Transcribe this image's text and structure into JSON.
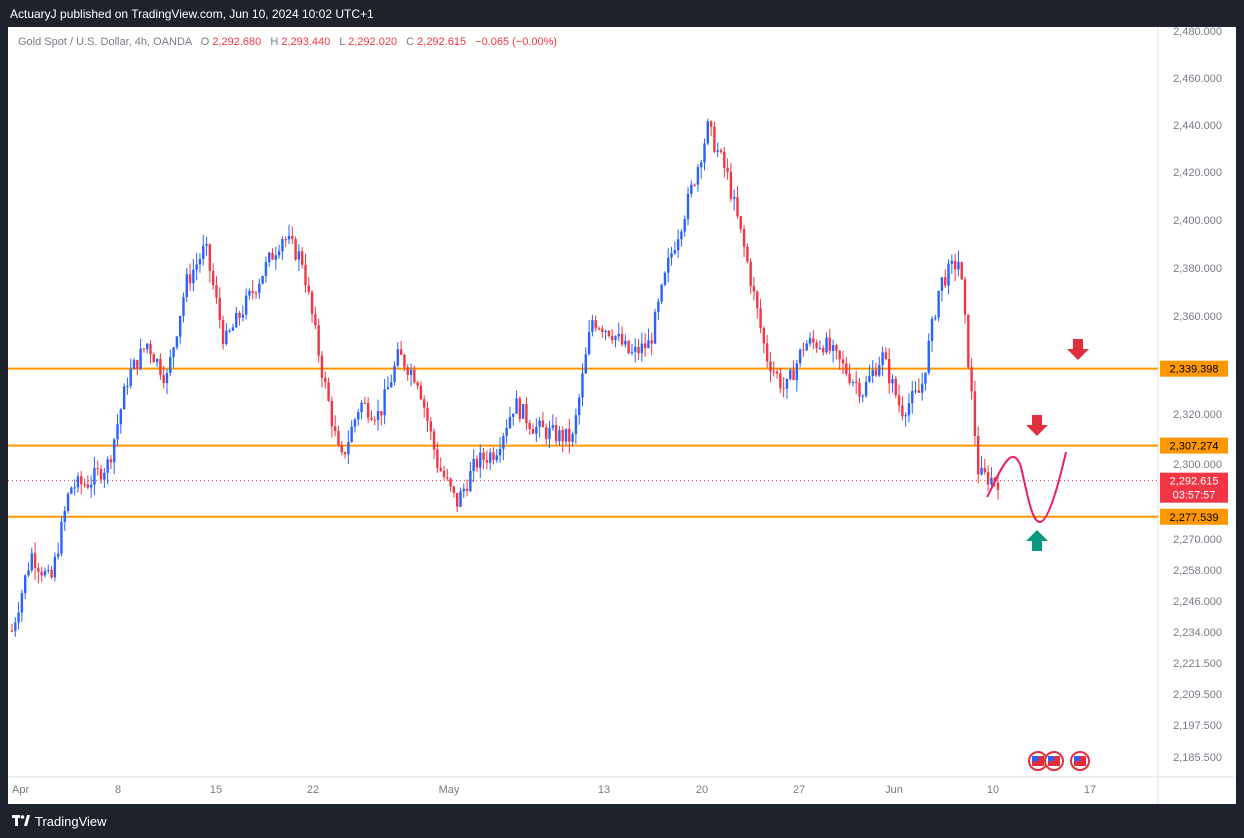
{
  "header": {
    "published": "ActuaryJ published on TradingView.com, Jun 10, 2024 10:02 UTC+1"
  },
  "footer": {
    "brand": "TradingView",
    "logo_icon": "tradingview-logo-icon"
  },
  "legend": {
    "symbol": "Gold Spot / U.S. Dollar, 4h, OANDA",
    "o_label": "O",
    "o_value": "2,292.680",
    "h_label": "H",
    "h_value": "2,293.440",
    "l_label": "L",
    "l_value": "2,292.020",
    "c_label": "C",
    "c_value": "2,292.615",
    "change": "−0.065 (−0.00%)"
  },
  "colors": {
    "up": "#2962ff",
    "down": "#f23645",
    "level": "#ff9800",
    "projection": "#e91e63",
    "arrow_down": "#e03040",
    "arrow_up": "#089981",
    "background": "#1e222d",
    "chart_bg": "#ffffff"
  },
  "price_axis": {
    "ticks": [
      "2,480.000",
      "2,460.000",
      "2,440.000",
      "2,420.000",
      "2,400.000",
      "2,380.000",
      "2,360.000",
      "2,320.000",
      "2,300.000",
      "2,270.000",
      "2,258.000",
      "2,246.000",
      "2,234.000",
      "2,221.500",
      "2,209.500",
      "2,197.500",
      "2,185.500"
    ]
  },
  "time_axis": {
    "labels": [
      "Apr",
      "8",
      "15",
      "22",
      "May",
      "13",
      "20",
      "27",
      "Jun",
      "10",
      "17"
    ]
  },
  "chart_data": {
    "type": "candlestick",
    "title": "Gold Spot / U.S. Dollar, 4h, OANDA",
    "x_labels": [
      "Apr",
      "8",
      "15",
      "22",
      "May",
      "13",
      "20",
      "27",
      "Jun",
      "10",
      "17"
    ],
    "levels": [
      {
        "label": "2,339.398",
        "value": 2339.398,
        "color": "#ff9800"
      },
      {
        "label": "2,307.274",
        "value": 2307.274,
        "color": "#ff9800"
      },
      {
        "label": "2,277.539",
        "value": 2277.539,
        "color": "#ff9800"
      }
    ],
    "current_price": {
      "label": "2,292.615",
      "countdown": "03:57:57",
      "value": 2292.615
    },
    "series_anchors": [
      {
        "x": "Apr 1",
        "price": 2230
      },
      {
        "x": "Apr 2",
        "price": 2262
      },
      {
        "x": "Apr 3",
        "price": 2250
      },
      {
        "x": "Apr 4",
        "price": 2290
      },
      {
        "x": "Apr 5",
        "price": 2292
      },
      {
        "x": "Apr 8",
        "price": 2300
      },
      {
        "x": "Apr 9",
        "price": 2336
      },
      {
        "x": "Apr 10",
        "price": 2350
      },
      {
        "x": "Apr 11",
        "price": 2335
      },
      {
        "x": "Apr 12",
        "price": 2375
      },
      {
        "x": "Apr 15",
        "price": 2390
      },
      {
        "x": "Apr 16",
        "price": 2350
      },
      {
        "x": "Apr 17",
        "price": 2365
      },
      {
        "x": "Apr 18",
        "price": 2380
      },
      {
        "x": "Apr 19",
        "price": 2395
      },
      {
        "x": "Apr 22",
        "price": 2385
      },
      {
        "x": "Apr 23",
        "price": 2340
      },
      {
        "x": "Apr 24",
        "price": 2300
      },
      {
        "x": "Apr 25",
        "price": 2325
      },
      {
        "x": "Apr 26",
        "price": 2320
      },
      {
        "x": "Apr 29",
        "price": 2345
      },
      {
        "x": "Apr 30",
        "price": 2335
      },
      {
        "x": "May 1",
        "price": 2300
      },
      {
        "x": "May 2",
        "price": 2283
      },
      {
        "x": "May 3",
        "price": 2300
      },
      {
        "x": "May 6",
        "price": 2305
      },
      {
        "x": "May 7",
        "price": 2325
      },
      {
        "x": "May 8",
        "price": 2315
      },
      {
        "x": "May 9",
        "price": 2312
      },
      {
        "x": "May 10",
        "price": 2310
      },
      {
        "x": "May 13",
        "price": 2360
      },
      {
        "x": "May 14",
        "price": 2355
      },
      {
        "x": "May 15",
        "price": 2345
      },
      {
        "x": "May 16",
        "price": 2350
      },
      {
        "x": "May 17",
        "price": 2385
      },
      {
        "x": "May 20",
        "price": 2410
      },
      {
        "x": "May 21",
        "price": 2440
      },
      {
        "x": "May 22",
        "price": 2420
      },
      {
        "x": "May 23",
        "price": 2385
      },
      {
        "x": "May 24",
        "price": 2345
      },
      {
        "x": "May 27",
        "price": 2330
      },
      {
        "x": "May 28",
        "price": 2350
      },
      {
        "x": "May 29",
        "price": 2350
      },
      {
        "x": "May 30",
        "price": 2340
      },
      {
        "x": "May 31",
        "price": 2330
      },
      {
        "x": "Jun 3",
        "price": 2345
      },
      {
        "x": "Jun 4",
        "price": 2322
      },
      {
        "x": "Jun 5",
        "price": 2330
      },
      {
        "x": "Jun 6",
        "price": 2375
      },
      {
        "x": "Jun 7",
        "price": 2385
      },
      {
        "x": "Jun 7",
        "price": 2295
      },
      {
        "x": "Jun 10",
        "price": 2292.615
      }
    ]
  }
}
